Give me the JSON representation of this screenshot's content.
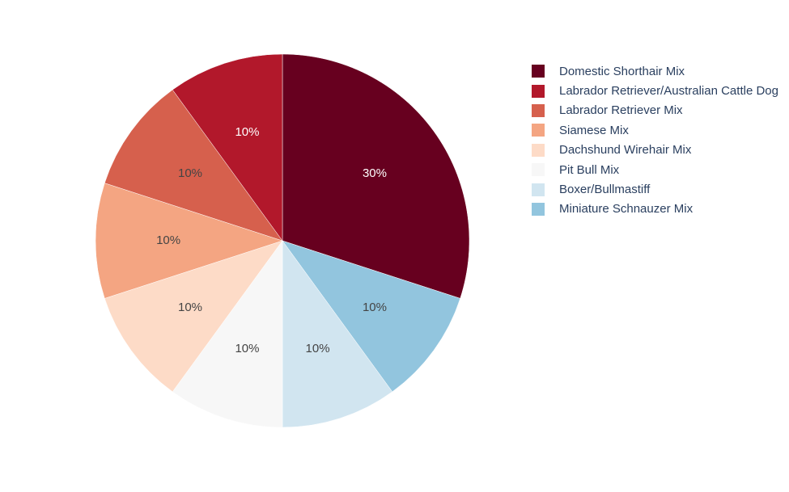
{
  "chart_data": {
    "type": "pie",
    "title": "",
    "slices": [
      {
        "label": "Domestic Shorthair Mix",
        "value": 30,
        "text": "30%",
        "color": "#67001f",
        "text_color": "#ffffff"
      },
      {
        "label": "Miniature Schnauzer Mix",
        "value": 10,
        "text": "10%",
        "color": "#92c5de",
        "text_color": "#444444"
      },
      {
        "label": "Boxer/Bullmastiff",
        "value": 10,
        "text": "10%",
        "color": "#d1e5f0",
        "text_color": "#444444"
      },
      {
        "label": "Pit Bull Mix",
        "value": 10,
        "text": "10%",
        "color": "#f7f7f7",
        "text_color": "#444444"
      },
      {
        "label": "Dachshund Wirehair Mix",
        "value": 10,
        "text": "10%",
        "color": "#fddbc7",
        "text_color": "#444444"
      },
      {
        "label": "Siamese Mix",
        "value": 10,
        "text": "10%",
        "color": "#f4a582",
        "text_color": "#444444"
      },
      {
        "label": "Labrador Retriever Mix",
        "value": 10,
        "text": "10%",
        "color": "#d6604d",
        "text_color": "#444444"
      },
      {
        "label": "Labrador Retriever/Australian Cattle Dog",
        "value": 10,
        "text": "10%",
        "color": "#b2182b",
        "text_color": "#ffffff"
      }
    ],
    "legend": {
      "placement": "right",
      "items": [
        {
          "label": "Domestic Shorthair Mix",
          "color": "#67001f"
        },
        {
          "label": "Labrador Retriever/Australian Cattle Dog",
          "color": "#b2182b"
        },
        {
          "label": "Labrador Retriever Mix",
          "color": "#d6604d"
        },
        {
          "label": "Siamese Mix",
          "color": "#f4a582"
        },
        {
          "label": "Dachshund Wirehair Mix",
          "color": "#fddbc7"
        },
        {
          "label": "Pit Bull Mix",
          "color": "#f7f7f7"
        },
        {
          "label": "Boxer/Bullmastiff",
          "color": "#d1e5f0"
        },
        {
          "label": "Miniature Schnauzer Mix",
          "color": "#92c5de"
        }
      ]
    }
  }
}
